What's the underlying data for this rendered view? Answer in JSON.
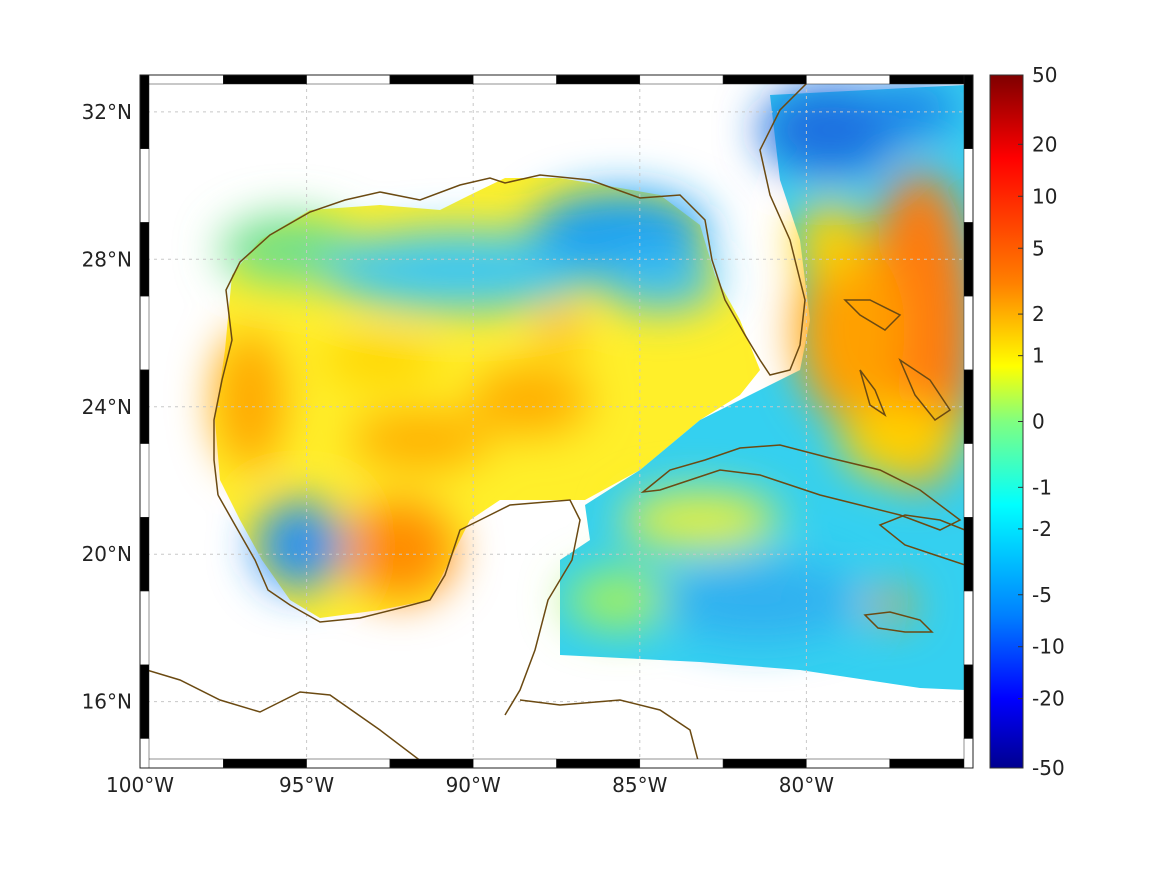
{
  "map": {
    "lon_ticks": [
      {
        "value": -100,
        "label": "100°W"
      },
      {
        "value": -95,
        "label": "95°W"
      },
      {
        "value": -90,
        "label": "90°W"
      },
      {
        "value": -85,
        "label": "85°W"
      },
      {
        "value": -80,
        "label": "80°W"
      }
    ],
    "lat_ticks": [
      {
        "value": 32,
        "label": "32°N"
      },
      {
        "value": 28,
        "label": "28°N"
      },
      {
        "value": 24,
        "label": "24°N"
      },
      {
        "value": 20,
        "label": "20°N"
      },
      {
        "value": 16,
        "label": "16°N"
      }
    ],
    "lon_range": [
      -100,
      -75
    ],
    "lat_range": [
      14.2,
      33
    ],
    "grid": true,
    "coastline_color": "#6b4a12"
  },
  "colorbar": {
    "ticks": [
      "50",
      "20",
      "10",
      "5",
      "2",
      "1",
      "0",
      "-1",
      "-2",
      "-5",
      "-10",
      "-20",
      "-50"
    ],
    "colors": [
      "#7f0000",
      "#ff0000",
      "#ff8000",
      "#ffff00",
      "#80ff80",
      "#00ffff",
      "#0080ff",
      "#0000ff",
      "#00008f"
    ]
  }
}
